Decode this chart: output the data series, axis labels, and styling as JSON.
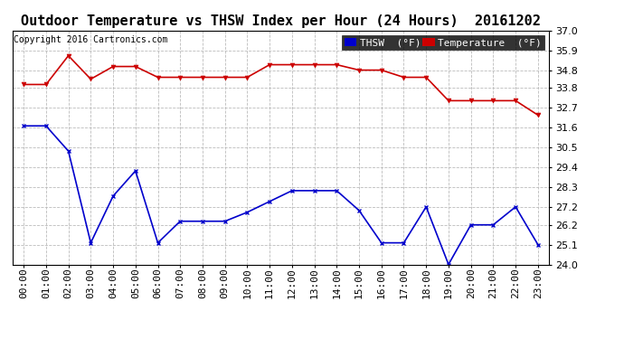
{
  "title": "Outdoor Temperature vs THSW Index per Hour (24 Hours)  20161202",
  "copyright": "Copyright 2016 Cartronics.com",
  "x_labels": [
    "00:00",
    "01:00",
    "02:00",
    "03:00",
    "04:00",
    "05:00",
    "06:00",
    "07:00",
    "08:00",
    "09:00",
    "10:00",
    "11:00",
    "12:00",
    "13:00",
    "14:00",
    "15:00",
    "16:00",
    "17:00",
    "18:00",
    "19:00",
    "20:00",
    "21:00",
    "22:00",
    "23:00"
  ],
  "temperature": [
    34.0,
    34.0,
    35.6,
    34.3,
    35.0,
    35.0,
    34.4,
    34.4,
    34.4,
    34.4,
    34.4,
    35.1,
    35.1,
    35.1,
    35.1,
    34.8,
    34.8,
    34.4,
    34.4,
    33.1,
    33.1,
    33.1,
    33.1,
    32.3
  ],
  "thsw": [
    31.7,
    31.7,
    30.3,
    25.2,
    27.8,
    29.2,
    25.2,
    26.4,
    26.4,
    26.4,
    26.9,
    27.5,
    28.1,
    28.1,
    28.1,
    27.0,
    25.2,
    25.2,
    27.2,
    24.0,
    26.2,
    26.2,
    27.2,
    25.1
  ],
  "ylim": [
    24.0,
    37.0
  ],
  "yticks": [
    24.0,
    25.1,
    26.2,
    27.2,
    28.3,
    29.4,
    30.5,
    31.6,
    32.7,
    33.8,
    34.8,
    35.9,
    37.0
  ],
  "temp_color": "#cc0000",
  "thsw_color": "#0000cc",
  "bg_color": "#ffffff",
  "grid_color": "#bbbbbb",
  "legend_thsw_bg": "#0000cc",
  "legend_temp_bg": "#cc0000",
  "title_fontsize": 11,
  "tick_fontsize": 8,
  "copyright_fontsize": 7,
  "legend_fontsize": 8
}
